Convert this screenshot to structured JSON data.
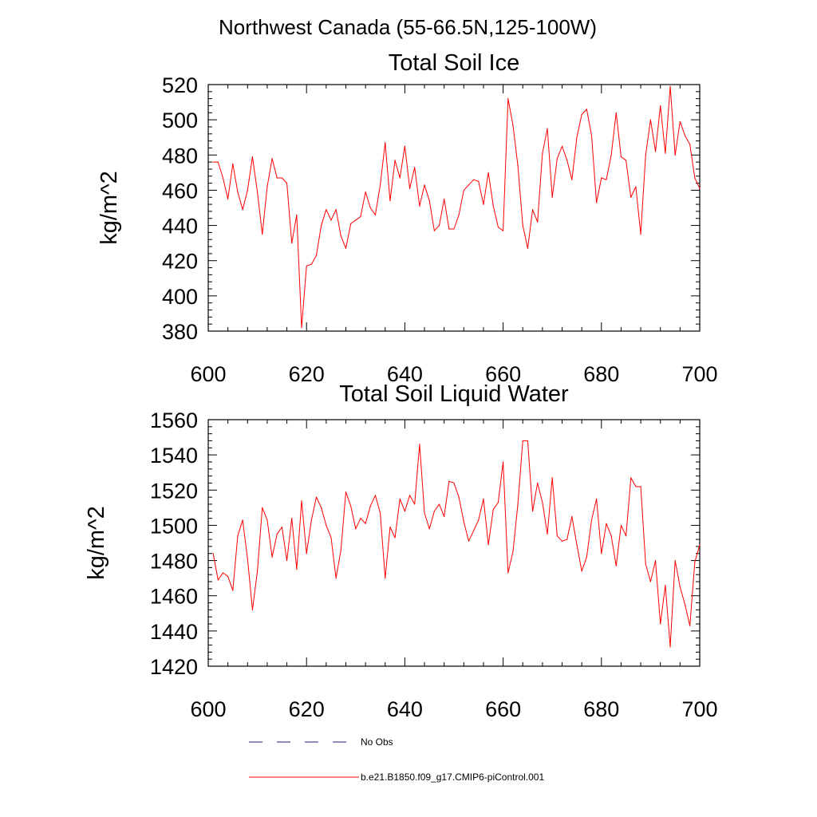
{
  "figure": {
    "title": "Northwest Canada (55-66.5N,125-100W)"
  },
  "chart_data": [
    {
      "type": "line",
      "title": "Total Soil Ice",
      "xlabel": "",
      "ylabel": "kg/m^2",
      "xlim": [
        600,
        700
      ],
      "ylim": [
        380,
        520
      ],
      "x_ticks": [
        600,
        620,
        640,
        660,
        680,
        700
      ],
      "y_ticks": [
        380,
        400,
        420,
        440,
        460,
        480,
        500,
        520
      ],
      "x_start": 601,
      "grid": false,
      "series": [
        {
          "name": "b.e21.B1850.f09_g17.CMIP6-piControl.001",
          "color": "#ff0000",
          "values": [
            476,
            476,
            467,
            455,
            475,
            459,
            449,
            460,
            479,
            459,
            435,
            462,
            478,
            467,
            467,
            464,
            430,
            446,
            382,
            417,
            418,
            423,
            440,
            449,
            443,
            449,
            434,
            427,
            441,
            443,
            445,
            459,
            450,
            446,
            463,
            487,
            454,
            477,
            467,
            485,
            461,
            473,
            451,
            463,
            454,
            437,
            440,
            455,
            438,
            438,
            446,
            460,
            463,
            466,
            465,
            452,
            470,
            451,
            439,
            437,
            512,
            497,
            474,
            440,
            427,
            449,
            442,
            481,
            495,
            456,
            478,
            485,
            477,
            466,
            490,
            503,
            506,
            491,
            453,
            467,
            466,
            480,
            504,
            479,
            477,
            456,
            462,
            435,
            480,
            500,
            482,
            508,
            481,
            519,
            480,
            499,
            491,
            486,
            467,
            461
          ]
        }
      ]
    },
    {
      "type": "line",
      "title": "Total Soil Liquid Water",
      "xlabel": "",
      "ylabel": "kg/m^2",
      "xlim": [
        600,
        700
      ],
      "ylim": [
        1420,
        1560
      ],
      "x_ticks": [
        600,
        620,
        640,
        660,
        680,
        700
      ],
      "y_ticks": [
        1420,
        1440,
        1460,
        1480,
        1500,
        1520,
        1540,
        1560
      ],
      "x_start": 601,
      "grid": false,
      "series": [
        {
          "name": "b.e21.B1850.f09_g17.CMIP6-piControl.001",
          "color": "#ff0000",
          "values": [
            1484,
            1469,
            1473,
            1471,
            1463,
            1494,
            1503,
            1481,
            1452,
            1474,
            1510,
            1503,
            1482,
            1495,
            1499,
            1480,
            1504,
            1475,
            1514,
            1484,
            1503,
            1516,
            1510,
            1500,
            1493,
            1470,
            1486,
            1519,
            1511,
            1498,
            1504,
            1501,
            1511,
            1517,
            1507,
            1470,
            1499,
            1493,
            1515,
            1508,
            1517,
            1512,
            1546,
            1507,
            1498,
            1508,
            1512,
            1505,
            1525,
            1524,
            1516,
            1502,
            1491,
            1497,
            1503,
            1515,
            1489,
            1509,
            1513,
            1536,
            1473,
            1485,
            1512,
            1548,
            1548,
            1508,
            1524,
            1513,
            1495,
            1527,
            1494,
            1491,
            1492,
            1505,
            1489,
            1474,
            1482,
            1503,
            1515,
            1484,
            1501,
            1494,
            1477,
            1500,
            1494,
            1527,
            1522,
            1522,
            1478,
            1468,
            1480,
            1444,
            1466,
            1431,
            1480,
            1465,
            1455,
            1443,
            1479,
            1489
          ]
        }
      ]
    }
  ],
  "legend": {
    "placement": "bottom",
    "entries": [
      {
        "label": "No Obs",
        "style": "dashed",
        "color": "#1a1a80"
      },
      {
        "label": "b.e21.B1850.f09_g17.CMIP6-piControl.001",
        "style": "solid",
        "color": "#ff0000"
      }
    ]
  }
}
